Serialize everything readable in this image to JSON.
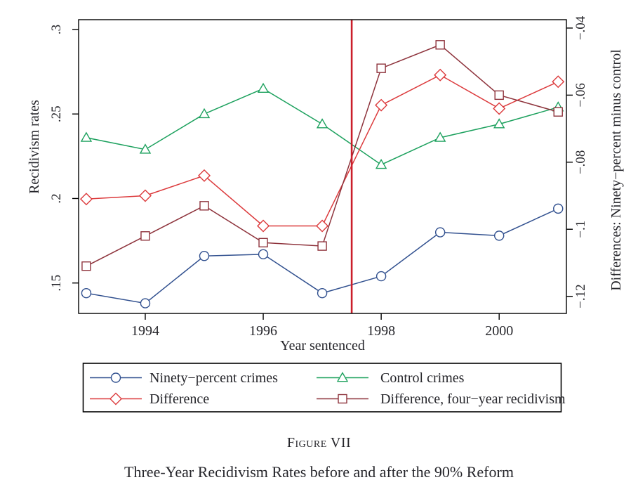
{
  "chart_data": {
    "type": "line",
    "x": [
      1993,
      1994,
      1995,
      1996,
      1997,
      1998,
      1999,
      2000,
      2001
    ],
    "series": [
      {
        "name": "Ninety−percent crimes",
        "axis": "left",
        "marker": "circle",
        "color": "#31508f",
        "values": [
          0.144,
          0.138,
          0.166,
          0.167,
          0.144,
          0.154,
          0.18,
          0.178,
          0.194
        ]
      },
      {
        "name": "Control crimes",
        "axis": "left",
        "marker": "triangle",
        "color": "#1da15e",
        "values": [
          0.236,
          0.229,
          0.25,
          0.265,
          0.244,
          0.22,
          0.236,
          0.244,
          0.254
        ]
      },
      {
        "name": "Difference",
        "axis": "right",
        "marker": "diamond",
        "color": "#dc3a3c",
        "values": [
          -0.091,
          -0.09,
          -0.084,
          -0.099,
          -0.099,
          -0.063,
          -0.054,
          -0.064,
          -0.056
        ]
      },
      {
        "name": "Difference, four−year recidivism",
        "axis": "right",
        "marker": "square",
        "color": "#8e333c",
        "values": [
          -0.111,
          -0.102,
          -0.093,
          -0.104,
          -0.105,
          -0.052,
          -0.045,
          -0.06,
          -0.065
        ]
      }
    ],
    "x_axis": {
      "label": "Year sentenced",
      "tick_values": [
        1994,
        1996,
        1998,
        2000
      ],
      "tick_labels": [
        "1994",
        "1996",
        "1998",
        "2000"
      ],
      "range": [
        1992.87,
        2001.14
      ]
    },
    "left_axis": {
      "label": "Recidivism rates",
      "tick_values": [
        0.15,
        0.2,
        0.25,
        0.3
      ],
      "tick_labels": [
        ".15",
        ".2",
        ".25",
        ".3"
      ],
      "range": [
        0.132,
        0.3058
      ]
    },
    "right_axis": {
      "label": "Differences: Ninety−percent minus control",
      "tick_values": [
        -0.12,
        -0.1,
        -0.08,
        -0.06,
        -0.04
      ],
      "tick_labels": [
        "−.12",
        "−.1",
        "−.08",
        "−.06",
        "−.04"
      ],
      "range": [
        -0.1251,
        -0.0375
      ]
    },
    "vline": {
      "x": 1997.5,
      "color": "#cb1f2b"
    },
    "grid": "off",
    "legend_position": "bottom-box",
    "axis_color": "#000000",
    "text_color": "#26262b"
  },
  "caption": {
    "figure_label": "Figure VII",
    "title": "Three-Year Recidivism Rates before and after the 90% Reform"
  }
}
